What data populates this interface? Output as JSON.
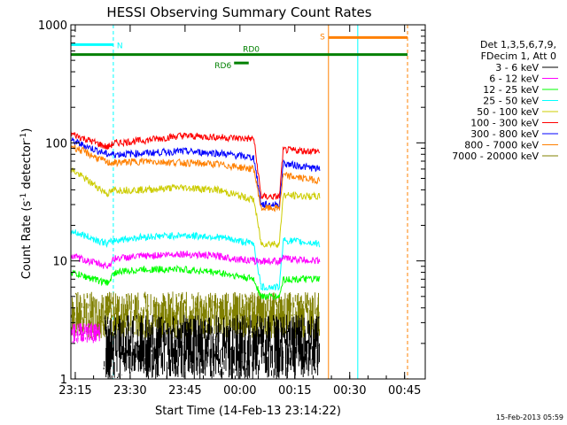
{
  "chart_data": {
    "type": "line",
    "title": "HESSI Observing Summary Count Rates",
    "xlabel": "Start Time (14-Feb-13 23:14:22)",
    "ylabel_parts": [
      "Count Rate (s",
      "-1",
      " detector",
      "-1",
      ")"
    ],
    "yscale": "log",
    "ylim": [
      1,
      1000
    ],
    "x_tick_labels": [
      "23:15",
      "23:30",
      "23:45",
      "00:00",
      "00:15",
      "00:30",
      "00:45"
    ],
    "y_tick_labels": [
      "1",
      "10",
      "100",
      "1000"
    ],
    "xlim_minutes": [
      0,
      46
    ],
    "grid": false,
    "legend": {
      "placement": "right",
      "header": [
        "Det 1,3,5,6,7,9,",
        "FDecim 1, Att 0"
      ],
      "entries": [
        {
          "label": "3 - 6 keV",
          "color": "#000000"
        },
        {
          "label": "6 - 12 keV",
          "color": "#ff00ff"
        },
        {
          "label": "12 - 25 keV",
          "color": "#00ff00"
        },
        {
          "label": "25 - 50 keV",
          "color": "#00ffff"
        },
        {
          "label": "50 - 100 keV",
          "color": "#cccc00"
        },
        {
          "label": "100 - 300 keV",
          "color": "#ff0000"
        },
        {
          "label": "300 - 800 keV",
          "color": "#0000ff"
        },
        {
          "label": "800 - 7000 keV",
          "color": "#ff8000"
        },
        {
          "label": "7000 - 20000 keV",
          "color": "#808000"
        }
      ]
    },
    "series": [
      {
        "key": "r100_300",
        "color": "#ff0000",
        "x": [
          0,
          5,
          6,
          10,
          15,
          20,
          25,
          26,
          26.2,
          28.5,
          29,
          34
        ],
        "y": [
          120,
          92,
          100,
          105,
          115,
          112,
          108,
          35,
          35,
          35,
          87,
          85
        ]
      },
      {
        "key": "r300_800",
        "color": "#0000ff",
        "x": [
          0,
          5,
          6,
          10,
          15,
          20,
          25,
          26,
          26.2,
          28.5,
          29,
          34
        ],
        "y": [
          105,
          80,
          80,
          82,
          85,
          82,
          75,
          30,
          30,
          30,
          67,
          60
        ]
      },
      {
        "key": "r800_7000",
        "color": "#ff8000",
        "x": [
          0,
          5,
          6,
          10,
          15,
          20,
          25,
          26,
          26.2,
          28.5,
          29,
          34
        ],
        "y": [
          95,
          68,
          68,
          70,
          68,
          66,
          60,
          28,
          28,
          28,
          53,
          48
        ]
      },
      {
        "key": "r50_100",
        "color": "#cccc00",
        "x": [
          0,
          5,
          6,
          10,
          15,
          20,
          25,
          26,
          26.2,
          28.5,
          29,
          34
        ],
        "y": [
          60,
          37,
          40,
          40,
          42,
          40,
          33,
          14,
          14,
          14,
          36,
          35
        ]
      },
      {
        "key": "r25_50",
        "color": "#00ffff",
        "x": [
          0,
          5,
          6,
          10,
          15,
          20,
          25,
          26,
          26.2,
          28.5,
          29,
          34
        ],
        "y": [
          18,
          14,
          15,
          16,
          16.5,
          16,
          14,
          6,
          6,
          6,
          15,
          14
        ]
      },
      {
        "key": "r6_12",
        "color": "#ff00ff",
        "x": [
          0,
          5,
          6,
          10,
          15,
          20,
          25,
          26,
          26.2,
          28.5,
          29,
          34
        ],
        "y": [
          11,
          9,
          10.5,
          11,
          11.5,
          11,
          10,
          10,
          10,
          10,
          10.5,
          10
        ]
      },
      {
        "key": "r12_25",
        "color": "#00ff00",
        "x": [
          0,
          5,
          6,
          10,
          15,
          20,
          25,
          26,
          26.2,
          28.5,
          29,
          34
        ],
        "y": [
          8,
          6.5,
          8,
          8.5,
          8.5,
          8,
          7,
          5,
          5,
          5,
          7,
          7
        ]
      }
    ],
    "noisy_series": [
      {
        "key": "r7000_20000",
        "color": "#808000",
        "x_start": 0,
        "x_end": 34,
        "ymin": 2.2,
        "ymax": 5.5
      },
      {
        "key": "r3_6",
        "color": "#000000",
        "x_start": 4.5,
        "x_end": 34,
        "ymin": 1,
        "ymax": 3.5
      },
      {
        "key": "r6_12_low",
        "color": "#ff00ff",
        "x_start": 0,
        "x_end": 4,
        "ymin": 2,
        "ymax": 3
      }
    ],
    "top_bars": [
      {
        "label": "N",
        "color": "#00ffff",
        "x_start": 0,
        "x_end": 5.8,
        "y": 680
      },
      {
        "label": "RD0",
        "color": "#008000",
        "x_start": 0,
        "x_end": 46,
        "y": 560
      },
      {
        "label": "RD6",
        "color": "#008000",
        "x_start": 22.3,
        "x_end": 24.3,
        "y": 475
      },
      {
        "label": "S",
        "color": "#ff8000",
        "x_start": 35.2,
        "x_end": 46,
        "y": 780
      }
    ],
    "vertical_lines": [
      {
        "x": 0,
        "color": "#00ffff",
        "dashed": false
      },
      {
        "x": 5.8,
        "color": "#00ffff",
        "dashed": true
      },
      {
        "x": 35.2,
        "color": "#ff8000",
        "dashed": false
      },
      {
        "x": 39.2,
        "color": "#00ffff",
        "dashed": false
      },
      {
        "x": 46,
        "color": "#00ffff",
        "dashed": true
      },
      {
        "x": 46,
        "color": "#ff8000",
        "dashed": true
      }
    ],
    "timestamp": "15-Feb-2013 05:59"
  }
}
